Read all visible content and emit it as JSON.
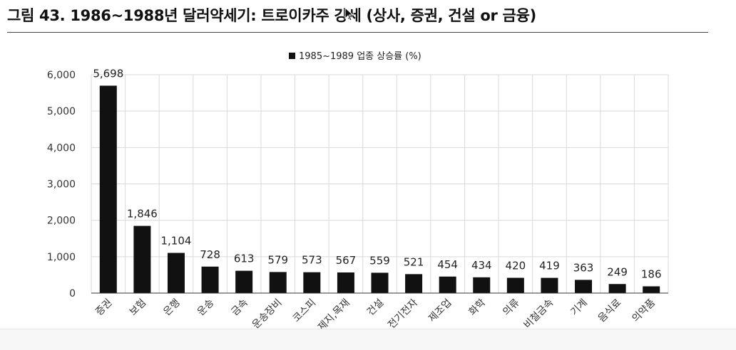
{
  "figure": {
    "title": "그림 43. 1986~1988년 달러약세기: 트로이카주 강세 (상사, 증권, 건설 or 금융)"
  },
  "chart_data": {
    "type": "bar",
    "legend": {
      "label": "1985~1989 업종 상승률 (%)",
      "position": "top-center",
      "color": "#111111"
    },
    "categories": [
      "증권",
      "보험",
      "은행",
      "운송",
      "금속",
      "운송장비",
      "코스피",
      "제지,목재",
      "건설",
      "전기전자",
      "제조업",
      "화학",
      "의류",
      "비철금속",
      "기계",
      "음식료",
      "의약품"
    ],
    "series": [
      {
        "name": "1985~1989 업종 상승률 (%)",
        "values": [
          5698,
          1846,
          1104,
          728,
          613,
          579,
          573,
          567,
          559,
          521,
          454,
          434,
          420,
          419,
          363,
          249,
          186
        ]
      }
    ],
    "data_labels": [
      "5,698",
      "1,846",
      "1,104",
      "728",
      "613",
      "579",
      "573",
      "567",
      "559",
      "521",
      "454",
      "434",
      "420",
      "419",
      "363",
      "249",
      "186"
    ],
    "y_ticks": [
      "0",
      "1,000",
      "2,000",
      "3,000",
      "4,000",
      "5,000",
      "6,000"
    ],
    "ylim": [
      0,
      6000
    ],
    "grid": true,
    "bar_color": "#111111",
    "grid_color": "#d9d9d9"
  }
}
